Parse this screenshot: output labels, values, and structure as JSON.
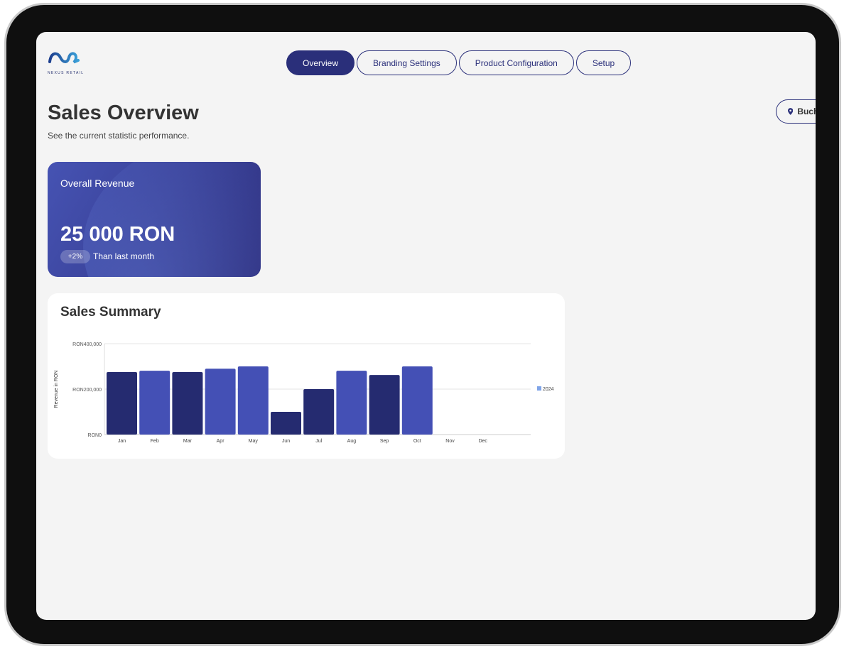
{
  "brand": {
    "name": "NEXUS RETAIL"
  },
  "nav": {
    "tabs": [
      {
        "label": "Overview",
        "active": true
      },
      {
        "label": "Branding Settings"
      },
      {
        "label": "Product Configuration"
      },
      {
        "label": "Setup"
      }
    ]
  },
  "header": {
    "title": "Sales Overview",
    "subtitle": "See the current statistic performance.",
    "location": "Bucharest"
  },
  "revenue_card": {
    "label": "Overall Revenue",
    "value": "25 000 RON",
    "change": "+2%",
    "comparison": "Than last month"
  },
  "summary": {
    "title": "Sales Summary"
  },
  "colors": {
    "dark_bar": "#252b70",
    "light_bar": "#4450b5",
    "legend": "#7fa4e8",
    "accent": "#2a2f7a"
  },
  "chart_data": {
    "type": "bar",
    "ylabel": "Revenue in RON",
    "ylim": [
      0,
      400000
    ],
    "yticks": [
      {
        "value": 0,
        "label": "RON0"
      },
      {
        "value": 200000,
        "label": "RON200,000"
      },
      {
        "value": 400000,
        "label": "RON400,000"
      }
    ],
    "categories": [
      "Jan",
      "Feb",
      "Mar",
      "Apr",
      "May",
      "Jun",
      "Jul",
      "Aug",
      "Sep",
      "Oct",
      "Nov",
      "Dec"
    ],
    "series": [
      {
        "name": "2024",
        "values": [
          275000,
          281000,
          275000,
          290000,
          300000,
          100000,
          200000,
          281000,
          262000,
          300000,
          null,
          null
        ],
        "bar_colors": [
          "#252b70",
          "#4450b5",
          "#252b70",
          "#4450b5",
          "#4450b5",
          "#252b70",
          "#252b70",
          "#4450b5",
          "#252b70",
          "#4450b5",
          null,
          null
        ]
      }
    ],
    "grid": true,
    "legend": "right"
  }
}
